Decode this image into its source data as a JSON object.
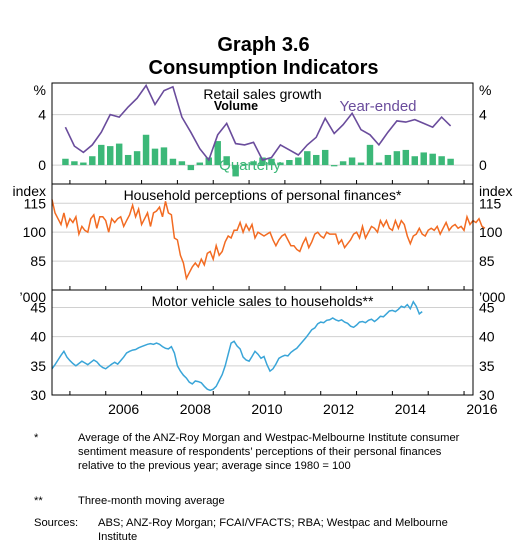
{
  "title": "Graph 3.6",
  "subtitle": "Consumption Indicators",
  "x_ticks": [
    "2006",
    "2008",
    "2010",
    "2012",
    "2014",
    "2016"
  ],
  "colors": {
    "volume_bar": "#3cb878",
    "year_ended_line": "#6a4c9c",
    "perceptions_line": "#f26b22",
    "motor_line": "#3aa5d8",
    "frame": "#000000",
    "grid": "#d0d0d0"
  },
  "chart_data": [
    {
      "type": "bar",
      "title": "Retail sales growth",
      "unit_left": "%",
      "unit_right": "%",
      "ylim": [
        -1.5,
        6.5
      ],
      "y_ticks": [
        "4",
        "0"
      ],
      "series": [
        {
          "name": "Quarterly",
          "x": [
            "2004-Q4",
            "2005-Q1",
            "2005-Q2",
            "2005-Q3",
            "2005-Q4",
            "2006-Q1",
            "2006-Q2",
            "2006-Q3",
            "2006-Q4",
            "2007-Q1",
            "2007-Q2",
            "2007-Q3",
            "2007-Q4",
            "2008-Q1",
            "2008-Q2",
            "2008-Q3",
            "2008-Q4",
            "2009-Q1",
            "2009-Q2",
            "2009-Q3",
            "2009-Q4",
            "2010-Q1",
            "2010-Q2",
            "2010-Q3",
            "2010-Q4",
            "2011-Q1",
            "2011-Q2",
            "2011-Q3",
            "2011-Q4",
            "2012-Q1",
            "2012-Q2",
            "2012-Q3",
            "2012-Q4",
            "2013-Q1",
            "2013-Q2",
            "2013-Q3",
            "2013-Q4",
            "2014-Q1",
            "2014-Q2",
            "2014-Q3",
            "2014-Q4",
            "2015-Q1",
            "2015-Q2",
            "2015-Q3"
          ],
          "values": [
            0.5,
            0.3,
            0.2,
            0.7,
            1.6,
            1.5,
            1.7,
            0.8,
            1.1,
            2.4,
            1.3,
            1.4,
            0.5,
            0.3,
            -0.4,
            0.2,
            0.6,
            1.9,
            0.7,
            -0.9,
            0.1,
            0.3,
            0.6,
            0.5,
            0.2,
            0.4,
            0.6,
            1.1,
            0.8,
            1.2,
            -0.1,
            0.3,
            0.6,
            0.2,
            1.6,
            0.2,
            0.8,
            1.1,
            1.2,
            0.7,
            1.0,
            0.9,
            0.7,
            0.5
          ]
        },
        {
          "name": "Year-ended",
          "values": [
            3.0,
            1.5,
            1.0,
            1.6,
            2.6,
            4.0,
            3.8,
            4.6,
            5.3,
            6.3,
            4.8,
            5.9,
            6.2,
            3.8,
            2.6,
            1.3,
            0.4,
            2.4,
            3.3,
            1.7,
            1.6,
            1.8,
            0.4,
            0.6,
            1.6,
            1.2,
            0.8,
            1.6,
            2.2,
            3.7,
            2.5,
            3.2,
            4.1,
            2.8,
            2.4,
            1.6,
            2.6,
            3.5,
            3.4,
            3.6,
            3.3,
            3.0,
            3.8,
            3.1
          ]
        }
      ],
      "labels": {
        "volume": "Volume",
        "year_ended": "Year-ended",
        "quarterly": "Quarterly"
      }
    },
    {
      "type": "line",
      "title": "Household perceptions of personal finances*",
      "unit_left": "index",
      "unit_right": "index",
      "ylim": [
        70,
        125
      ],
      "y_ticks": [
        "115",
        "100",
        "85"
      ],
      "series": [
        {
          "name": "Household perceptions of personal finances",
          "x_start": "2004-07",
          "points_per_year": 12,
          "values": [
            117,
            110,
            107,
            104,
            110,
            103,
            107,
            105,
            108,
            99,
            103,
            101,
            100,
            107,
            109,
            102,
            108,
            108,
            106,
            100,
            107,
            105,
            107,
            108,
            103,
            106,
            109,
            114,
            108,
            112,
            104,
            107,
            110,
            103,
            110,
            111,
            113,
            108,
            116,
            110,
            109,
            97,
            96,
            88,
            84,
            76,
            79,
            82,
            84,
            82,
            86,
            83,
            89,
            90,
            86,
            93,
            88,
            90,
            95,
            98,
            97,
            101,
            101,
            105,
            100,
            104,
            101,
            104,
            97,
            100,
            99,
            98,
            99,
            100,
            96,
            93,
            96,
            98,
            99,
            96,
            93,
            93,
            91,
            90,
            94,
            97,
            92,
            95,
            99,
            100,
            98,
            97,
            100,
            99,
            99,
            99,
            94,
            96,
            92,
            94,
            96,
            99,
            100,
            97,
            103,
            97,
            100,
            103,
            102,
            100,
            106,
            103,
            106,
            102,
            101,
            106,
            102,
            106,
            104,
            98,
            94,
            98,
            99,
            102,
            99,
            98,
            101,
            102,
            101,
            103,
            99,
            102,
            105,
            101,
            103,
            104,
            102,
            103,
            101,
            108,
            104,
            106,
            105,
            107,
            103,
            102
          ]
        }
      ]
    },
    {
      "type": "line",
      "title": "Motor vehicle sales to households**",
      "unit_left": "’000",
      "unit_right": "’000",
      "ylim": [
        30,
        48
      ],
      "y_ticks": [
        "45",
        "40",
        "35",
        "30"
      ],
      "series": [
        {
          "name": "Motor vehicle sales to households",
          "x_start": "2004-07",
          "points_per_year": 12,
          "values": [
            34.5,
            35.2,
            36.0,
            36.8,
            37.5,
            36.5,
            35.9,
            35.4,
            35.0,
            35.4,
            35.8,
            35.5,
            35.2,
            35.6,
            36.0,
            35.7,
            35.1,
            34.7,
            34.5,
            34.9,
            35.3,
            35.6,
            35.3,
            35.9,
            36.5,
            37.2,
            37.5,
            37.7,
            37.8,
            38.1,
            38.3,
            38.5,
            38.7,
            38.8,
            38.7,
            38.9,
            38.7,
            38.3,
            38.0,
            37.9,
            38.3,
            37.2,
            35.0,
            34.1,
            33.4,
            32.9,
            32.2,
            31.9,
            32.4,
            32.3,
            32.1,
            31.5,
            31.0,
            30.8,
            31.0,
            31.5,
            32.5,
            33.5,
            35.0,
            37.0,
            38.9,
            39.2,
            38.4,
            37.9,
            36.5,
            36.0,
            35.8,
            36.6,
            37.5,
            37.0,
            36.3,
            36.6,
            35.2,
            34.1,
            34.5,
            35.3,
            36.3,
            36.6,
            36.8,
            36.7,
            37.3,
            37.7,
            38.0,
            38.6,
            39.2,
            39.8,
            40.5,
            41.2,
            41.5,
            42.2,
            42.5,
            42.4,
            42.8,
            42.9,
            43.2,
            42.9,
            42.7,
            42.9,
            42.5,
            42.3,
            41.8,
            41.6,
            42.0,
            42.5,
            42.6,
            42.4,
            42.8,
            43.0,
            42.6,
            43.0,
            43.5,
            43.4,
            43.9,
            44.4,
            44.5,
            44.3,
            44.7,
            45.2,
            45.0,
            45.5,
            44.8,
            46.0,
            45.2,
            43.9,
            44.3
          ]
        }
      ]
    }
  ],
  "notes": [
    {
      "symbol": "*",
      "text": "Average of the ANZ-Roy Morgan and Westpac-Melbourne Institute consumer sentiment measure of respondents’ perceptions of their personal finances relative to the previous year; average since 1980 = 100"
    },
    {
      "symbol": "**",
      "text": "Three-month moving average"
    }
  ],
  "sources": {
    "label": "Sources:",
    "text": "ABS; ANZ-Roy Morgan; FCAI/VFACTS; RBA; Westpac and Melbourne Institute"
  }
}
